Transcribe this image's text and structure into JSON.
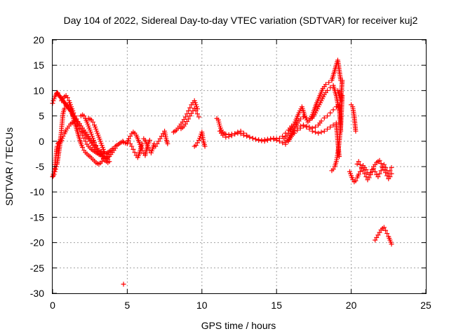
{
  "chart_data": {
    "type": "scatter",
    "title": "Day 104 of 2022, Sidereal Day-to-day VTEC variation (SDTVAR) for receiver kuj2",
    "xlabel": "GPS time / hours",
    "ylabel": "SDTVAR / TECUs",
    "xlim": [
      0,
      25
    ],
    "ylim": [
      -30,
      20
    ],
    "grid": true,
    "xticks": [
      0,
      5,
      10,
      15,
      20,
      25
    ],
    "xtick_labels": [
      "0",
      "5",
      "10",
      "15",
      "20",
      "25"
    ],
    "yticks": [
      -30,
      -25,
      -20,
      -15,
      -10,
      -5,
      0,
      5,
      10,
      15,
      20
    ],
    "ytick_labels": [
      "-30",
      "-25",
      "-20",
      "-15",
      "-10",
      "-5",
      "0",
      "5",
      "10",
      "15",
      "20"
    ],
    "marker": "+",
    "color": "#ff0000",
    "series": [
      {
        "name": "seg-0-5a",
        "x": [
          0.0,
          0.05,
          0.1,
          0.15,
          0.2,
          0.25,
          0.3,
          0.35,
          0.4,
          0.45,
          0.5,
          0.55,
          0.6,
          0.65,
          0.7,
          0.75,
          0.8,
          0.85,
          0.9,
          0.95,
          1.0,
          1.05,
          1.1,
          1.15,
          1.2,
          1.25,
          1.3,
          1.35,
          1.4,
          1.45,
          1.5,
          1.55,
          1.6,
          1.65,
          1.7,
          1.8,
          1.9,
          2.0,
          2.1,
          2.2,
          2.3,
          2.4,
          2.5,
          2.6,
          2.7,
          2.8,
          2.9,
          3.0,
          3.1,
          3.2,
          3.3,
          3.4,
          3.5,
          3.6,
          3.7,
          3.8,
          3.9,
          4.0,
          4.1,
          4.2,
          4.3,
          4.4,
          4.5,
          4.6,
          4.7
        ],
        "y": [
          7.5,
          8.0,
          8.4,
          8.8,
          9.1,
          9.4,
          9.6,
          9.5,
          9.2,
          9.0,
          8.8,
          8.6,
          8.4,
          8.2,
          8.0,
          7.8,
          7.6,
          7.4,
          7.2,
          7.0,
          6.8,
          6.6,
          6.4,
          6.2,
          6.0,
          5.8,
          5.5,
          5.3,
          5.0,
          4.8,
          4.6,
          4.2,
          3.8,
          3.4,
          3.0,
          2.4,
          1.8,
          1.2,
          0.6,
          0.0,
          -0.6,
          -1.0,
          -1.3,
          -1.6,
          -1.8,
          -2.0,
          -2.2,
          -2.4,
          -2.6,
          -2.7,
          -2.8,
          -3.0,
          -3.2,
          -3.4,
          -3.0,
          -2.6,
          -2.2,
          -1.8,
          -1.4,
          -1.0,
          -0.8,
          -0.6,
          -0.4,
          -0.2,
          0.0
        ]
      },
      {
        "name": "seg-0-5b",
        "x": [
          0.05,
          0.1,
          0.15,
          0.2,
          0.25,
          0.3,
          0.35,
          0.4,
          0.45,
          0.5,
          0.55,
          0.6,
          0.65,
          0.7,
          0.8,
          0.9,
          1.0,
          1.1,
          1.2,
          1.3,
          1.4,
          1.5,
          1.6,
          1.7,
          1.8,
          1.9,
          2.0,
          2.1,
          2.2,
          2.3,
          2.4,
          2.5,
          2.6,
          2.7,
          2.8,
          2.9,
          3.0,
          3.1,
          3.2,
          3.3,
          3.4,
          3.5,
          3.6
        ],
        "y": [
          -6.5,
          -6.0,
          -5.0,
          -3.5,
          -2.0,
          -1.0,
          -0.5,
          -0.3,
          -0.2,
          0.0,
          1.0,
          2.5,
          4.0,
          5.5,
          6.5,
          7.0,
          7.2,
          7.0,
          6.5,
          5.5,
          4.5,
          3.5,
          2.5,
          1.5,
          0.5,
          -0.5,
          -1.2,
          -1.8,
          -2.2,
          -2.5,
          -2.8,
          -3.0,
          -3.3,
          -3.6,
          -3.9,
          -4.2,
          -4.4,
          -4.5,
          -4.3,
          -4.0,
          -3.5,
          -3.0,
          -2.5
        ]
      },
      {
        "name": "seg-0-5c",
        "x": [
          0.0,
          0.05,
          0.1,
          0.15,
          0.2,
          0.25,
          0.3,
          0.35,
          0.4,
          0.45,
          0.5,
          0.6,
          0.7,
          0.8,
          0.9,
          1.0,
          1.1,
          1.2,
          1.3,
          1.4,
          1.5,
          1.6,
          1.7,
          1.8,
          1.9,
          2.0,
          2.1,
          2.2,
          2.3,
          2.4,
          2.5,
          2.6,
          2.7,
          2.8,
          2.9,
          3.0,
          3.1,
          3.2,
          3.3,
          3.4,
          3.5,
          3.6,
          3.7,
          3.8,
          3.9,
          4.0
        ],
        "y": [
          -7.0,
          -6.8,
          -6.5,
          -6.0,
          -5.5,
          -5.0,
          -4.5,
          -3.5,
          -2.5,
          -1.5,
          -0.5,
          0.2,
          1.0,
          1.5,
          2.2,
          2.6,
          3.0,
          3.4,
          3.6,
          3.8,
          3.9,
          4.0,
          3.8,
          3.5,
          3.0,
          2.6,
          2.2,
          1.8,
          1.4,
          1.0,
          0.6,
          0.2,
          -0.2,
          -0.6,
          -1.0,
          -1.4,
          -1.8,
          -2.0,
          -2.2,
          -2.4,
          -2.5,
          -2.4,
          -2.2,
          -2.0,
          -1.8,
          -1.5
        ]
      },
      {
        "name": "seg-0-5d",
        "x": [
          0.6,
          0.7,
          0.8,
          0.9,
          1.0,
          1.1,
          1.2,
          1.3,
          1.4,
          1.5,
          1.6,
          1.7,
          1.8,
          1.9,
          2.0,
          2.1,
          2.2,
          2.3,
          2.4,
          2.5,
          2.6,
          2.7,
          2.8,
          2.9,
          3.0,
          3.1,
          3.2,
          3.3,
          3.4,
          3.5,
          3.6,
          3.7,
          3.8,
          3.9,
          4.0,
          4.1,
          4.2
        ],
        "y": [
          8.0,
          8.5,
          8.8,
          9.0,
          8.6,
          8.0,
          7.2,
          6.4,
          5.6,
          5.0,
          4.4,
          3.8,
          3.2,
          2.6,
          2.0,
          1.6,
          1.2,
          0.8,
          0.4,
          0.0,
          -0.4,
          -0.8,
          -1.2,
          -1.6,
          -2.0,
          -2.3,
          -2.6,
          -2.8,
          -3.0,
          -3.2,
          -3.4,
          -3.2,
          -3.0,
          -2.6,
          -2.2,
          -1.8,
          -1.4
        ]
      },
      {
        "name": "seg-2-4e",
        "x": [
          1.9,
          2.0,
          2.1,
          2.2,
          2.3,
          2.4,
          2.5,
          2.6,
          2.7,
          2.8,
          2.9,
          3.0,
          3.1,
          3.2,
          3.3,
          3.4,
          3.5,
          3.6,
          3.7
        ],
        "y": [
          5.0,
          5.2,
          5.0,
          4.5,
          3.8,
          3.0,
          2.2,
          1.4,
          0.6,
          -0.2,
          -0.8,
          -1.4,
          -2.0,
          -2.5,
          -3.0,
          -3.4,
          -3.8,
          -4.0,
          -4.2
        ]
      },
      {
        "name": "seg-2-4f",
        "x": [
          2.4,
          2.5,
          2.6,
          2.7,
          2.8,
          2.9,
          3.0,
          3.1,
          3.2,
          3.3,
          3.4,
          3.5,
          3.6,
          3.7,
          3.8
        ],
        "y": [
          4.5,
          4.4,
          4.2,
          3.8,
          3.2,
          2.4,
          1.6,
          0.8,
          0.0,
          -0.8,
          -1.6,
          -2.4,
          -3.0,
          -3.6,
          -4.0
        ]
      },
      {
        "name": "seg-4-6",
        "x": [
          4.75,
          5.0,
          5.1,
          5.2,
          5.3,
          5.4,
          5.5,
          5.6,
          5.7,
          5.8,
          5.9,
          6.0,
          6.1,
          6.2,
          6.3,
          6.4,
          6.5
        ],
        "y": [
          -0.2,
          -0.5,
          0.5,
          1.0,
          1.5,
          1.8,
          1.6,
          1.2,
          0.5,
          -0.2,
          -1.0,
          -1.8,
          -2.4,
          -2.8,
          -1.5,
          -0.5,
          0.2
        ]
      },
      {
        "name": "seg-5-6",
        "x": [
          5.2,
          5.3,
          5.4,
          5.5,
          5.6,
          5.7,
          5.8,
          5.9,
          6.0
        ],
        "y": [
          -0.5,
          -1.0,
          -1.6,
          -2.2,
          -2.8,
          -3.2,
          -2.5,
          -1.5,
          -0.5
        ]
      },
      {
        "name": "seg-6-7",
        "x": [
          6.1,
          6.2,
          6.3,
          6.4,
          6.5,
          6.6,
          6.7,
          6.8
        ],
        "y": [
          0.5,
          0.2,
          -0.5,
          -1.2,
          -1.8,
          -2.3,
          -1.5,
          -0.5
        ]
      },
      {
        "name": "seg-7-8",
        "x": [
          6.9,
          7.0,
          7.1,
          7.2,
          7.3,
          7.4,
          7.5,
          7.6,
          7.7
        ],
        "y": [
          -1.0,
          -0.5,
          0.0,
          0.5,
          1.0,
          1.5,
          2.0,
          0.5,
          -0.5
        ]
      },
      {
        "name": "seg-8-10a",
        "x": [
          8.1,
          8.2,
          8.3,
          8.4,
          8.5,
          8.6,
          8.7,
          8.8,
          8.9,
          9.0,
          9.1,
          9.2,
          9.3,
          9.4,
          9.5,
          9.6,
          9.7
        ],
        "y": [
          1.8,
          2.0,
          2.2,
          2.6,
          3.0,
          3.4,
          3.8,
          4.3,
          4.8,
          5.4,
          6.0,
          6.6,
          7.2,
          7.6,
          8.0,
          7.2,
          6.4
        ]
      },
      {
        "name": "seg-8-10b",
        "x": [
          8.6,
          8.7,
          8.8,
          8.9,
          9.0,
          9.1,
          9.2,
          9.3,
          9.4,
          9.5,
          9.6,
          9.7,
          9.8
        ],
        "y": [
          2.5,
          2.7,
          3.0,
          3.4,
          3.9,
          4.4,
          5.0,
          5.5,
          6.0,
          6.5,
          6.0,
          5.4,
          4.8
        ]
      },
      {
        "name": "seg-9-10c",
        "x": [
          9.5,
          9.6,
          9.7,
          9.8,
          9.9,
          10.0,
          10.1,
          10.2
        ],
        "y": [
          -1.0,
          -0.8,
          -0.3,
          0.2,
          1.0,
          1.8,
          0.0,
          -1.0
        ]
      },
      {
        "name": "seg-11-15a",
        "x": [
          11.0,
          11.1,
          11.2,
          11.3,
          11.4,
          11.5,
          11.6,
          11.8,
          12.0,
          12.2,
          12.4,
          12.6,
          12.8,
          13.0,
          13.2,
          13.4,
          13.6,
          13.8,
          14.0,
          14.2,
          14.4,
          14.6,
          14.8,
          15.0,
          15.2,
          15.4,
          15.6
        ],
        "y": [
          4.5,
          4.2,
          3.0,
          2.2,
          1.8,
          1.5,
          1.4,
          1.3,
          1.4,
          1.5,
          1.8,
          2.0,
          1.6,
          1.2,
          0.8,
          0.6,
          0.4,
          0.3,
          0.2,
          0.3,
          0.4,
          0.5,
          0.4,
          0.2,
          0.0,
          -0.3,
          -0.6
        ]
      },
      {
        "name": "seg-11-15b",
        "x": [
          11.2,
          11.4,
          11.6,
          11.8,
          12.0,
          12.2,
          12.4,
          12.6,
          12.8,
          13.0,
          13.2,
          13.4,
          13.6,
          13.8,
          14.0,
          14.2,
          14.4,
          14.6,
          14.8,
          15.0,
          15.2,
          15.4,
          15.6,
          15.8,
          16.0
        ],
        "y": [
          2.0,
          1.2,
          0.8,
          0.9,
          1.1,
          1.4,
          1.6,
          1.5,
          1.2,
          1.0,
          0.8,
          0.6,
          0.4,
          0.2,
          0.1,
          0.0,
          0.2,
          0.4,
          0.6,
          0.5,
          0.6,
          1.0,
          1.6,
          2.2,
          3.0
        ]
      },
      {
        "name": "seg-15-19a",
        "x": [
          15.5,
          15.7,
          15.9,
          16.1,
          16.3,
          16.5,
          16.7,
          16.9,
          17.1,
          17.3,
          17.5,
          17.7,
          17.9,
          18.1,
          18.3,
          18.5,
          18.7,
          18.8,
          18.9,
          19.0,
          19.1,
          19.2,
          19.3
        ],
        "y": [
          0.5,
          1.2,
          2.0,
          3.0,
          4.2,
          5.6,
          6.8,
          5.0,
          3.8,
          4.5,
          6.0,
          7.6,
          9.0,
          10.4,
          11.2,
          11.6,
          12.0,
          13.0,
          14.0,
          15.0,
          16.0,
          14.0,
          12.0
        ]
      },
      {
        "name": "seg-15-19b",
        "x": [
          15.6,
          15.8,
          16.0,
          16.2,
          16.4,
          16.6,
          16.8,
          17.0,
          17.2,
          17.4,
          17.6,
          17.8,
          18.0,
          18.2,
          18.4,
          18.6,
          18.8,
          19.0,
          19.2
        ],
        "y": [
          -0.2,
          0.5,
          1.5,
          2.6,
          3.6,
          4.4,
          4.8,
          4.6,
          4.2,
          4.6,
          5.6,
          6.8,
          8.0,
          9.2,
          10.0,
          10.6,
          11.0,
          9.0,
          6.0
        ]
      },
      {
        "name": "seg-15-19c",
        "x": [
          15.8,
          16.0,
          16.2,
          16.4,
          16.6,
          16.8,
          17.0,
          17.2,
          17.4,
          17.6,
          17.8,
          18.0,
          18.2,
          18.4,
          18.6,
          18.8,
          19.0,
          19.2,
          19.3
        ],
        "y": [
          0.0,
          1.0,
          2.0,
          2.6,
          3.0,
          3.2,
          3.0,
          2.8,
          2.6,
          2.8,
          3.2,
          4.0,
          4.6,
          5.0,
          5.6,
          6.2,
          6.8,
          7.2,
          2.0
        ]
      },
      {
        "name": "seg-16-19d",
        "x": [
          16.0,
          16.2,
          16.4,
          16.6,
          16.8,
          17.0,
          17.2,
          17.4,
          17.6,
          17.8,
          18.0,
          18.2,
          18.4,
          18.6,
          18.8,
          19.0,
          19.1,
          19.2
        ],
        "y": [
          1.0,
          1.6,
          2.2,
          2.6,
          3.0,
          2.8,
          2.4,
          2.0,
          1.8,
          1.6,
          1.8,
          2.0,
          2.4,
          2.8,
          3.2,
          3.6,
          0.0,
          -3.0
        ]
      },
      {
        "name": "seg-18-19e",
        "x": [
          18.7,
          18.8,
          18.9,
          19.0,
          19.1,
          19.2,
          19.3,
          19.4
        ],
        "y": [
          -5.8,
          -5.5,
          -5.0,
          -4.0,
          -2.5,
          0.0,
          3.0,
          9.0
        ]
      },
      {
        "name": "seg-19-20f",
        "x": [
          19.1,
          19.2,
          19.3,
          19.4
        ],
        "y": [
          10.0,
          9.0,
          8.0,
          12.0
        ]
      },
      {
        "name": "seg-20-21a",
        "x": [
          20.0,
          20.1,
          20.2,
          20.3
        ],
        "y": [
          7.2,
          6.8,
          5.0,
          2.0
        ]
      },
      {
        "name": "seg-20-23a",
        "x": [
          19.9,
          20.0,
          20.1,
          20.2,
          20.3,
          20.4,
          20.5,
          20.6,
          20.7,
          20.8,
          20.9,
          21.0,
          21.1,
          21.2,
          21.3,
          21.4,
          21.5,
          21.6,
          21.7,
          21.8,
          21.9,
          22.0,
          22.1,
          22.2,
          22.3,
          22.4,
          22.5,
          22.6,
          22.7
        ],
        "y": [
          -6.0,
          -6.8,
          -7.5,
          -8.0,
          -7.8,
          -7.2,
          -6.5,
          -6.0,
          -5.4,
          -4.8,
          -5.2,
          -5.6,
          -6.2,
          -6.6,
          -6.2,
          -5.6,
          -5.0,
          -4.6,
          -4.2,
          -4.0,
          -3.8,
          -4.4,
          -5.0,
          -5.6,
          -6.2,
          -6.8,
          -7.4,
          -7.0,
          -6.4
        ]
      },
      {
        "name": "seg-20-23b",
        "x": [
          20.4,
          20.5,
          20.6,
          20.7,
          20.8,
          20.9,
          21.0,
          21.1,
          21.2,
          21.3,
          21.4,
          21.5,
          21.6,
          21.7,
          21.8,
          21.9,
          22.0,
          22.1,
          22.2,
          22.3,
          22.4,
          22.5,
          22.6,
          22.7
        ],
        "y": [
          -4.5,
          -4.0,
          -4.6,
          -5.2,
          -5.8,
          -6.4,
          -7.0,
          -7.6,
          -7.2,
          -6.6,
          -6.0,
          -5.4,
          -6.0,
          -6.6,
          -7.0,
          -6.4,
          -5.8,
          -5.2,
          -4.6,
          -5.2,
          -5.8,
          -6.4,
          -5.8,
          -5.2
        ]
      },
      {
        "name": "seg-21-23c",
        "x": [
          21.6,
          21.7,
          21.8,
          21.9,
          22.0,
          22.1,
          22.2,
          22.3,
          22.4,
          22.5,
          22.6,
          22.7
        ],
        "y": [
          -19.5,
          -19.0,
          -18.5,
          -18.0,
          -17.5,
          -17.2,
          -17.0,
          -17.6,
          -18.2,
          -18.8,
          -19.5,
          -20.3
        ]
      }
    ],
    "outliers": {
      "x": [
        4.75
      ],
      "y": [
        -28.2
      ]
    }
  }
}
